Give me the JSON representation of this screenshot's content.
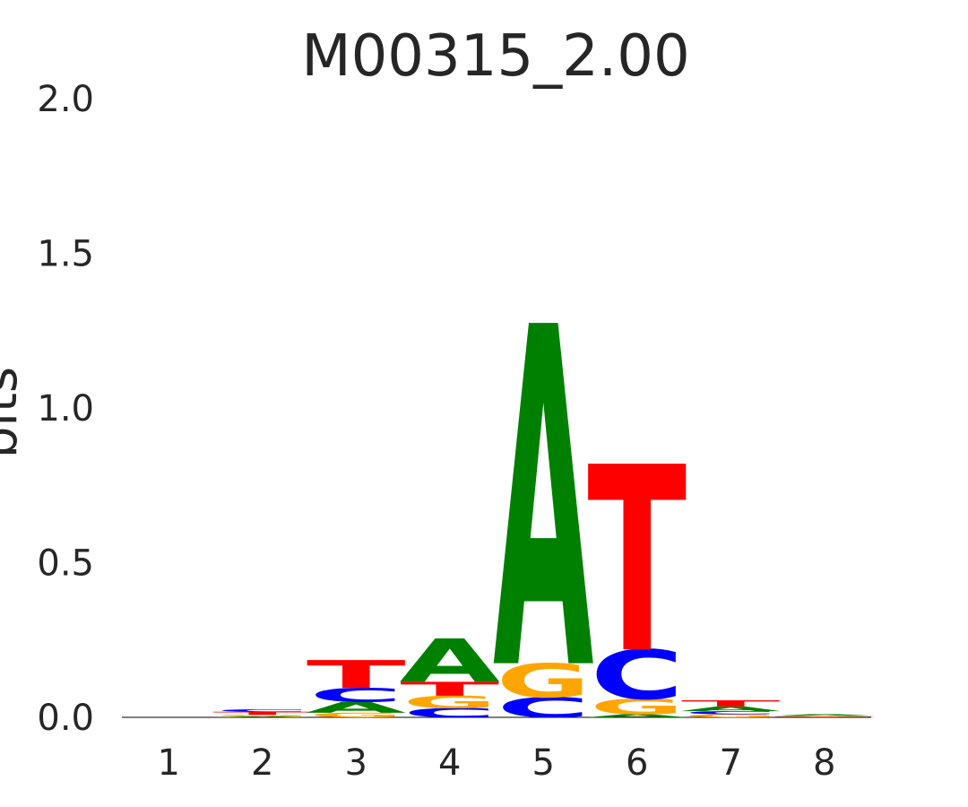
{
  "chart_data": {
    "type": "sequence-logo",
    "title": "M00315_2.00",
    "xlabel": "",
    "ylabel": "bits",
    "ylim": [
      0,
      2.0
    ],
    "y_ticks": [
      "0.0",
      "0.5",
      "1.0",
      "1.5",
      "2.0"
    ],
    "positions": [
      "1",
      "2",
      "3",
      "4",
      "5",
      "6",
      "7",
      "8"
    ],
    "grid": false,
    "colors": {
      "A": "#008000",
      "C": "#0000ff",
      "G": "#ffa500",
      "T": "#ff0000"
    },
    "stacks": [
      [],
      [
        {
          "base": "A",
          "bits": 0.003
        },
        {
          "base": "G",
          "bits": 0.005
        },
        {
          "base": "T",
          "bits": 0.01
        },
        {
          "base": "C",
          "bits": 0.008
        }
      ],
      [
        {
          "base": "G",
          "bits": 0.015
        },
        {
          "base": "A",
          "bits": 0.035
        },
        {
          "base": "C",
          "bits": 0.045
        },
        {
          "base": "T",
          "bits": 0.09
        }
      ],
      [
        {
          "base": "C",
          "bits": 0.03
        },
        {
          "base": "G",
          "bits": 0.04
        },
        {
          "base": "T",
          "bits": 0.045
        },
        {
          "base": "A",
          "bits": 0.14
        }
      ],
      [
        {
          "base": "C",
          "bits": 0.065
        },
        {
          "base": "G",
          "bits": 0.11
        },
        {
          "base": "A",
          "bits": 1.1
        }
      ],
      [
        {
          "base": "A",
          "bits": 0.01
        },
        {
          "base": "G",
          "bits": 0.05
        },
        {
          "base": "C",
          "bits": 0.16
        },
        {
          "base": "T",
          "bits": 0.6
        }
      ],
      [
        {
          "base": "G",
          "bits": 0.01
        },
        {
          "base": "C",
          "bits": 0.01
        },
        {
          "base": "A",
          "bits": 0.015
        },
        {
          "base": "T",
          "bits": 0.02
        }
      ],
      [
        {
          "base": "T",
          "bits": 0.002
        },
        {
          "base": "G",
          "bits": 0.003
        },
        {
          "base": "A",
          "bits": 0.005
        }
      ]
    ]
  }
}
